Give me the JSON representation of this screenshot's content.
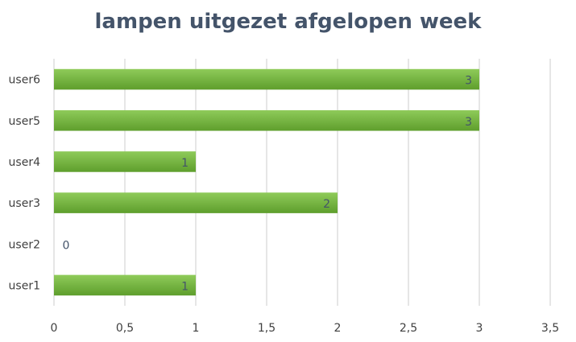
{
  "chart_data": {
    "type": "bar",
    "orientation": "horizontal",
    "title": "lampen uitgezet afgelopen week",
    "categories": [
      "user1",
      "user2",
      "user3",
      "user4",
      "user5",
      "user6"
    ],
    "values": [
      1,
      0,
      2,
      1,
      3,
      3
    ],
    "data_labels": [
      "1",
      "0",
      "2",
      "1",
      "3",
      "3"
    ],
    "xlim": [
      0,
      3.5
    ],
    "x_ticks": [
      0,
      0.5,
      1,
      1.5,
      2,
      2.5,
      3,
      3.5
    ],
    "x_tick_labels": [
      "0",
      "0,5",
      "1",
      "1,5",
      "2",
      "2,5",
      "3",
      "3,5"
    ],
    "xlabel": "",
    "ylabel": "",
    "grid": "vertical",
    "legend": "none",
    "colors": {
      "bar_top": "#8fcb5a",
      "bar_bottom": "#5e9e2c",
      "grid": "#d9d9d9",
      "title": "#44546a"
    }
  }
}
